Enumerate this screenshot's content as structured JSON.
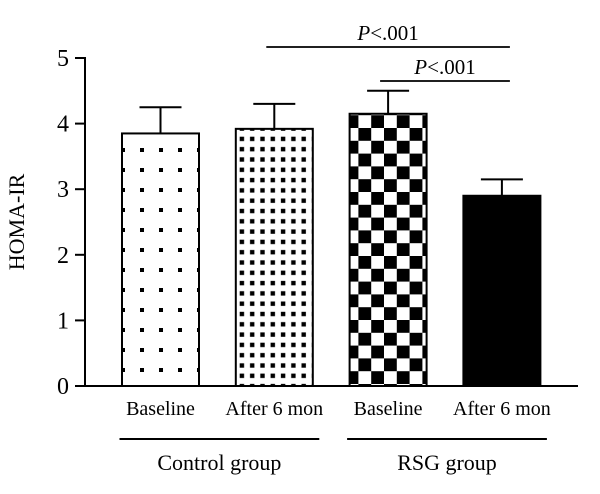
{
  "chart_data": {
    "type": "bar",
    "title": "",
    "ylabel": "HOMA-IR",
    "xlabel": "",
    "ylim": [
      0,
      5
    ],
    "yticks": [
      0,
      1,
      2,
      3,
      4,
      5
    ],
    "grid": false,
    "legend": "none",
    "colors": {
      "ink": "#000000",
      "background": "#ffffff"
    },
    "bars": [
      {
        "category": "Baseline",
        "group": "Control group",
        "value": 3.85,
        "error_up": 0.4,
        "fill_pattern": "sparse-dots"
      },
      {
        "category": "After 6 mon",
        "group": "Control group",
        "value": 3.92,
        "error_up": 0.38,
        "fill_pattern": "dense-dots"
      },
      {
        "category": "Baseline",
        "group": "RSG group",
        "value": 4.15,
        "error_up": 0.35,
        "fill_pattern": "checkerboard"
      },
      {
        "category": "After 6 mon",
        "group": "RSG group",
        "value": 2.9,
        "error_up": 0.25,
        "fill_pattern": "solid-black"
      }
    ],
    "groups": [
      {
        "label": "Control group",
        "bars": [
          0,
          1
        ]
      },
      {
        "label": "RSG group",
        "bars": [
          2,
          3
        ]
      }
    ],
    "annotations": [
      {
        "text": "P<.001",
        "italic_part": "P",
        "rest_part": "<.001",
        "from_bar": 1,
        "to_bar": 3,
        "level": 1
      },
      {
        "text": "P<.001",
        "italic_part": "P",
        "rest_part": "<.001",
        "from_bar": 2,
        "to_bar": 3,
        "level": 2
      }
    ]
  }
}
